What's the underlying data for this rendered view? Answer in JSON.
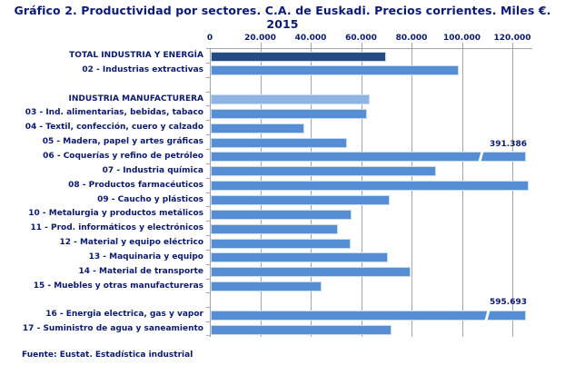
{
  "chart_data": {
    "type": "bar",
    "orientation": "horizontal",
    "title": "Gráfico 2. Productividad por sectores. C.A. de Euskadi. Precios corrientes. Miles €. 2015",
    "xlabel": "",
    "ylabel": "",
    "xlim": [
      0,
      127000
    ],
    "x_ticks": [
      "0",
      "20.000",
      "40.000",
      "60.000",
      "80.000",
      "100.000",
      "120.000"
    ],
    "x_tick_values": [
      0,
      20000,
      40000,
      60000,
      80000,
      100000,
      120000
    ],
    "grid": true,
    "axis_position": "top",
    "categories": [
      "TOTAL INDUSTRIA Y ENERGÍA",
      "02 - Industrias extractivas",
      "",
      "INDUSTRIA MANUFACTURERA",
      "03 - Ind. alimentarias, bebidas, tabaco",
      "04 - Textil, confección, cuero y calzado",
      "05 - Madera, papel y artes gráficas",
      "06 - Coquerías y refino de petróleo",
      "07 - Industria química",
      "08 - Productos farmacéuticos",
      "09 - Caucho y plásticos",
      "10 - Metalurgia y productos metálicos",
      "11 - Prod. informáticos y electrónicos",
      "12 - Material y equipo eléctrico",
      "13 - Maquinaria y equipo",
      "14 - Material de transporte",
      "15 - Muebles y otras manufactureras",
      "",
      "16 - Energia electrica, gas y vapor",
      "17 - Suministro de agua y saneamiento"
    ],
    "values": [
      69700,
      98300,
      null,
      63000,
      61900,
      37000,
      54200,
      391386,
      89400,
      126100,
      70900,
      56000,
      50300,
      55600,
      70200,
      79200,
      43900,
      null,
      595693,
      71600
    ],
    "annotations": [
      {
        "category": "06 - Coquerías y refino de petróleo",
        "text": "391.386",
        "note": "axis break"
      },
      {
        "category": "16 - Energia electrica, gas y vapor",
        "text": "595.693",
        "note": "axis break"
      }
    ],
    "colors": {
      "total": "#244c82",
      "manufacturing_total": "#8db4e2",
      "sector": "#558ed5"
    },
    "source": "Fuente: Eustat. Estadística industrial"
  },
  "labels": {
    "title": "Gráfico 2. Productividad por sectores. C.A. de Euskadi. Precios corrientes. Miles €. 2015",
    "source": "Fuente: Eustat. Estadística industrial",
    "ticks": [
      "0",
      "20.000",
      "40.000",
      "60.000",
      "80.000",
      "100.000",
      "120.000"
    ],
    "rows": [
      {
        "label": "TOTAL INDUSTRIA Y ENERGÍA",
        "value": 69700,
        "style": "dark"
      },
      {
        "label": "02 - Industrias extractivas",
        "value": 98300,
        "style": "normal"
      },
      {
        "label": "",
        "value": null,
        "style": "gap"
      },
      {
        "label": "INDUSTRIA MANUFACTURERA",
        "value": 63000,
        "style": "light"
      },
      {
        "label": "03 - Ind. alimentarias, bebidas, tabaco",
        "value": 61900,
        "style": "normal"
      },
      {
        "label": "04 - Textil, confección, cuero y calzado",
        "value": 37000,
        "style": "normal"
      },
      {
        "label": "05 - Madera, papel y artes gráficas",
        "value": 54200,
        "style": "normal"
      },
      {
        "label": "06 - Coquerías y refino de petróleo",
        "value": 391386,
        "style": "broken",
        "display": "391.386"
      },
      {
        "label": "07 - Industria química",
        "value": 89400,
        "style": "normal"
      },
      {
        "label": "08 - Productos farmacéuticos",
        "value": 126100,
        "style": "normal"
      },
      {
        "label": "09 - Caucho y plásticos",
        "value": 70900,
        "style": "normal"
      },
      {
        "label": "10 - Metalurgia y productos metálicos",
        "value": 56000,
        "style": "normal"
      },
      {
        "label": "11 - Prod. informáticos y electrónicos",
        "value": 50300,
        "style": "normal"
      },
      {
        "label": "12 - Material y equipo eléctrico",
        "value": 55600,
        "style": "normal"
      },
      {
        "label": "13 - Maquinaria y equipo",
        "value": 70200,
        "style": "normal"
      },
      {
        "label": "14 - Material de transporte",
        "value": 79200,
        "style": "normal"
      },
      {
        "label": "15 - Muebles y otras manufactureras",
        "value": 43900,
        "style": "normal"
      },
      {
        "label": "",
        "value": null,
        "style": "gap"
      },
      {
        "label": "16 - Energia electrica, gas y vapor",
        "value": 595693,
        "style": "broken",
        "display": "595.693"
      },
      {
        "label": "17 - Suministro de agua y saneamiento",
        "value": 71600,
        "style": "normal"
      }
    ]
  }
}
